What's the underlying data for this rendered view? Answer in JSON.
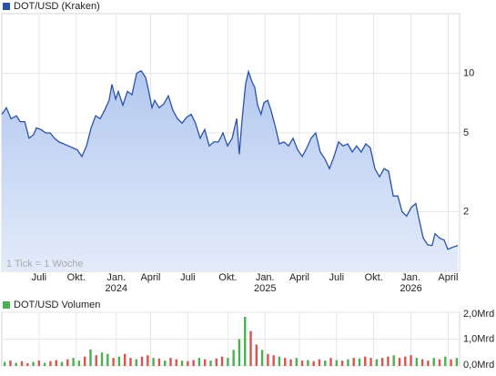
{
  "chart_data": [
    {
      "type": "line",
      "log": true,
      "grid": true,
      "fill": "area",
      "note": "1 Tick = 1 Woche",
      "xlim": [
        0,
        160
      ],
      "ylim": [
        1,
        20
      ],
      "yticks": [
        2,
        5,
        10
      ],
      "xticks": [
        {
          "value": 13,
          "label": "Juli"
        },
        {
          "value": 26,
          "label": "Okt."
        },
        {
          "value": 40,
          "label": "Jan.",
          "sublabel": "2024"
        },
        {
          "value": 52,
          "label": "April"
        },
        {
          "value": 65,
          "label": "Juli"
        },
        {
          "value": 79,
          "label": "Okt."
        },
        {
          "value": 92,
          "label": "Jan.",
          "sublabel": "2025"
        },
        {
          "value": 104,
          "label": "April"
        },
        {
          "value": 117,
          "label": "Juli"
        },
        {
          "value": 130,
          "label": "Okt."
        },
        {
          "value": 143,
          "label": "Jan.",
          "sublabel": "2026"
        },
        {
          "value": 156,
          "label": "April"
        }
      ],
      "x": [
        0,
        1.6,
        3.2,
        5.1,
        6.4,
        8.0,
        9.5,
        11.1,
        12.1,
        13.7,
        15.3,
        16.9,
        18.4,
        20.0,
        21.6,
        23.2,
        24.8,
        26.4,
        28.0,
        29.6,
        31.2,
        32.8,
        34.4,
        35.9,
        37.5,
        38.5,
        39.8,
        40.7,
        42.3,
        43.9,
        45.5,
        47.1,
        48.7,
        50.3,
        51.2,
        52.5,
        53.4,
        55.0,
        56.6,
        58.2,
        59.8,
        61.4,
        63.0,
        64.6,
        66.2,
        67.7,
        69.3,
        70.9,
        72.5,
        74.1,
        75.7,
        77.3,
        78.9,
        80.5,
        82.1,
        83.0,
        84.0,
        85.2,
        86.2,
        87.5,
        88.4,
        89.4,
        90.6,
        91.6,
        92.9,
        94.1,
        95.7,
        97.0,
        98.6,
        100.2,
        101.8,
        103.4,
        105.0,
        106.6,
        108.1,
        109.7,
        111.3,
        112.9,
        114.5,
        116.1,
        117.7,
        119.3,
        120.9,
        122.5,
        124.0,
        125.6,
        127.2,
        128.8,
        130.4,
        132.0,
        133.6,
        135.2,
        136.8,
        138.4,
        139.9,
        141.5,
        143.1,
        144.7,
        145.6,
        147.3,
        148.9,
        150.4,
        151.4,
        153.0,
        154.6,
        155.9,
        157.4,
        159.4
      ],
      "series": [
        {
          "name": "DOT/USD (Kraken)",
          "color": "#2a52a8",
          "values": [
            6.2,
            6.7,
            5.9,
            6.1,
            5.7,
            5.7,
            4.7,
            4.9,
            5.3,
            5.2,
            5.0,
            5.0,
            4.7,
            4.5,
            4.4,
            4.3,
            4.2,
            4.1,
            3.8,
            4.3,
            5.3,
            6.1,
            5.9,
            6.5,
            7.3,
            8.8,
            7.4,
            8.1,
            6.9,
            8.1,
            7.8,
            10.0,
            10.3,
            9.5,
            8.3,
            6.7,
            7.3,
            6.7,
            7.0,
            7.7,
            6.5,
            5.9,
            5.6,
            6.0,
            6.2,
            5.6,
            4.7,
            5.2,
            4.3,
            4.5,
            4.5,
            5.0,
            4.3,
            4.7,
            5.9,
            3.9,
            5.9,
            8.8,
            10.2,
            9.0,
            8.5,
            6.9,
            6.2,
            7.1,
            7.3,
            6.5,
            5.3,
            4.4,
            4.5,
            4.3,
            4.7,
            4.1,
            3.8,
            4.2,
            4.7,
            5.0,
            4.0,
            3.7,
            3.3,
            3.8,
            4.5,
            4.3,
            4.4,
            4.0,
            4.3,
            4.0,
            4.4,
            4.2,
            3.3,
            3.0,
            3.3,
            3.2,
            2.4,
            2.4,
            2.0,
            1.9,
            2.1,
            2.2,
            1.9,
            1.47,
            1.36,
            1.35,
            1.55,
            1.47,
            1.44,
            1.29,
            1.32,
            1.35
          ]
        }
      ]
    },
    {
      "type": "bar",
      "grid": true,
      "xlim": [
        0,
        160
      ],
      "ylim": [
        0,
        2
      ],
      "yticks": [
        {
          "value": 0,
          "label": "0,0Mrd"
        },
        {
          "value": 1,
          "label": "1,0Mrd"
        },
        {
          "value": 2,
          "label": "2,0Mrd"
        }
      ],
      "x": [
        1,
        3,
        5,
        7,
        9,
        11,
        13,
        15,
        17,
        19,
        21,
        23,
        25,
        27,
        29,
        31,
        33,
        35,
        37,
        39,
        41,
        43,
        45,
        47,
        49,
        51,
        53,
        55,
        57,
        59,
        61,
        63,
        65,
        67,
        69,
        71,
        73,
        75,
        77,
        79,
        81,
        83,
        85,
        87,
        89,
        91,
        93,
        95,
        97,
        99,
        101,
        103,
        105,
        107,
        109,
        111,
        113,
        115,
        117,
        119,
        121,
        123,
        125,
        127,
        129,
        131,
        133,
        135,
        137,
        139,
        141,
        143,
        145,
        147,
        149,
        151,
        153,
        155,
        157,
        159
      ],
      "series": [
        {
          "name": "DOT/USD Volumen",
          "color": "#4caf50",
          "values": [
            0.15,
            0.2,
            0.12,
            0.18,
            0.1,
            0.15,
            0.2,
            0.12,
            0.18,
            0.22,
            0.15,
            0.25,
            0.3,
            0.2,
            0.35,
            0.62,
            0.4,
            0.5,
            0.45,
            0.3,
            0.35,
            0.45,
            0.3,
            0.25,
            0.35,
            0.4,
            0.3,
            0.28,
            0.2,
            0.3,
            0.25,
            0.2,
            0.18,
            0.22,
            0.3,
            0.25,
            0.2,
            0.28,
            0.35,
            0.3,
            0.6,
            1.0,
            1.83,
            1.3,
            0.8,
            0.6,
            0.45,
            0.4,
            0.35,
            0.3,
            0.25,
            0.3,
            0.2,
            0.22,
            0.18,
            0.25,
            0.2,
            0.3,
            0.22,
            0.2,
            0.25,
            0.3,
            0.28,
            0.35,
            0.3,
            0.25,
            0.3,
            0.35,
            0.4,
            0.3,
            0.35,
            0.4,
            0.3,
            0.25,
            0.2,
            0.3,
            0.25,
            0.35,
            0.25,
            0.3
          ],
          "colors": [
            "#4caf50",
            "#d9534f",
            "#4caf50",
            "#d9534f",
            "#d9534f",
            "#4caf50",
            "#d9534f",
            "#4caf50",
            "#d9534f",
            "#d9534f",
            "#4caf50",
            "#d9534f",
            "#4caf50",
            "#4caf50",
            "#d9534f",
            "#4caf50",
            "#d9534f",
            "#4caf50",
            "#4caf50",
            "#d9534f",
            "#4caf50",
            "#d9534f",
            "#d9534f",
            "#4caf50",
            "#d9534f",
            "#d9534f",
            "#4caf50",
            "#d9534f",
            "#4caf50",
            "#d9534f",
            "#d9534f",
            "#4caf50",
            "#d9534f",
            "#d9534f",
            "#4caf50",
            "#d9534f",
            "#4caf50",
            "#d9534f",
            "#d9534f",
            "#4caf50",
            "#4caf50",
            "#4caf50",
            "#4caf50",
            "#d9534f",
            "#d9534f",
            "#4caf50",
            "#d9534f",
            "#d9534f",
            "#4caf50",
            "#d9534f",
            "#d9534f",
            "#4caf50",
            "#d9534f",
            "#4caf50",
            "#d9534f",
            "#d9534f",
            "#4caf50",
            "#d9534f",
            "#4caf50",
            "#d9534f",
            "#4caf50",
            "#d9534f",
            "#4caf50",
            "#d9534f",
            "#d9534f",
            "#4caf50",
            "#d9534f",
            "#d9534f",
            "#4caf50",
            "#d9534f",
            "#d9534f",
            "#d9534f",
            "#4caf50",
            "#d9534f",
            "#d9534f",
            "#4caf50",
            "#d9534f",
            "#4caf50",
            "#d9534f",
            "#4caf50"
          ]
        }
      ]
    }
  ]
}
